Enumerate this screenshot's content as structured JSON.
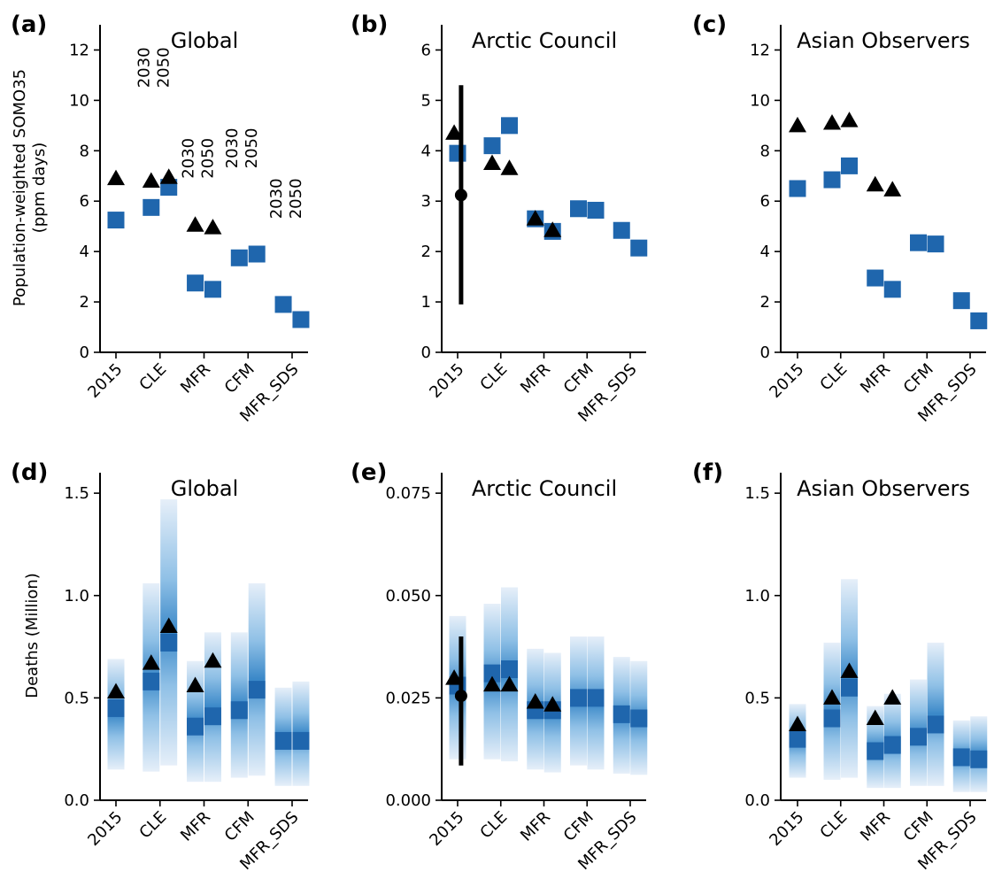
{
  "colors": {
    "square": "#1f66ad",
    "triangle": "#000000",
    "bar_core": "#1f66ad",
    "bar_light": "#dde9f6",
    "bar_mid": "#5a9fd6",
    "axis": "#000000"
  },
  "row_labels": {
    "top_ylabel_line1": "Population-weighted SOMO35",
    "top_ylabel_line2": "(ppm days)",
    "bottom_ylabel": "Deaths (Million)"
  },
  "chart_data": [
    {
      "id": "a",
      "letter": "(a)",
      "title": "Global",
      "type": "scatter",
      "categories": [
        "2015",
        "CLE",
        "MFR",
        "CFM",
        "MFR_SDS"
      ],
      "ylim": [
        0,
        13
      ],
      "yticks": [
        "0",
        "2",
        "4",
        "6",
        "8",
        "10",
        "12"
      ],
      "ytick_values": [
        0,
        2,
        4,
        6,
        8,
        10,
        12
      ],
      "ylabel": [
        "Population-weighted SOMO35",
        "(ppm days)"
      ],
      "year_labels": [
        {
          "category": 1,
          "y": 11.3,
          "texts": [
            "2030",
            "2050"
          ]
        },
        {
          "category": 2,
          "y": 7.7,
          "texts": [
            "2030",
            "2050"
          ]
        },
        {
          "category": 3,
          "y": 8.1,
          "texts": [
            "2030",
            "2050"
          ]
        },
        {
          "category": 4,
          "y": 6.1,
          "texts": [
            "2030",
            "2050"
          ]
        }
      ],
      "squares": [
        {
          "x": 0,
          "y": 5.25
        },
        {
          "x": 0.8,
          "y": 5.75
        },
        {
          "x": 1.2,
          "y": 6.55
        },
        {
          "x": 1.8,
          "y": 2.75
        },
        {
          "x": 2.2,
          "y": 2.5
        },
        {
          "x": 2.8,
          "y": 3.75
        },
        {
          "x": 3.2,
          "y": 3.9
        },
        {
          "x": 3.8,
          "y": 1.9
        },
        {
          "x": 4.2,
          "y": 1.3
        }
      ],
      "triangles": [
        {
          "x": 0,
          "y": 6.9
        },
        {
          "x": 0.8,
          "y": 6.8
        },
        {
          "x": 1.2,
          "y": 6.95
        },
        {
          "x": 1.8,
          "y": 5.05
        },
        {
          "x": 2.2,
          "y": 4.95
        }
      ]
    },
    {
      "id": "b",
      "letter": "(b)",
      "title": "Arctic Council",
      "type": "scatter",
      "categories": [
        "2015",
        "CLE",
        "MFR",
        "CFM",
        "MFR_SDS"
      ],
      "ylim": [
        0,
        6.5
      ],
      "yticks": [
        "0",
        "1",
        "2",
        "3",
        "4",
        "5",
        "6"
      ],
      "ytick_values": [
        0,
        1,
        2,
        3,
        4,
        5,
        6
      ],
      "squares": [
        {
          "x": 0,
          "y": 3.95
        },
        {
          "x": 0.8,
          "y": 4.1
        },
        {
          "x": 1.2,
          "y": 4.5
        },
        {
          "x": 1.8,
          "y": 2.65
        },
        {
          "x": 2.2,
          "y": 2.4
        },
        {
          "x": 2.8,
          "y": 2.85
        },
        {
          "x": 3.2,
          "y": 2.82
        },
        {
          "x": 3.8,
          "y": 2.42
        },
        {
          "x": 4.2,
          "y": 2.07
        }
      ],
      "triangles": [
        {
          "x": -0.08,
          "y": 4.35
        },
        {
          "x": 0.8,
          "y": 3.75
        },
        {
          "x": 1.2,
          "y": 3.65
        },
        {
          "x": 1.8,
          "y": 2.65
        },
        {
          "x": 2.2,
          "y": 2.42
        }
      ],
      "errorbar": {
        "x": 0.08,
        "y": 3.12,
        "low": 0.95,
        "high": 5.3
      }
    },
    {
      "id": "c",
      "letter": "(c)",
      "title": "Asian Observers",
      "type": "scatter",
      "categories": [
        "2015",
        "CLE",
        "MFR",
        "CFM",
        "MFR_SDS"
      ],
      "ylim": [
        0,
        13
      ],
      "yticks": [
        "0",
        "2",
        "4",
        "6",
        "8",
        "10",
        "12"
      ],
      "ytick_values": [
        0,
        2,
        4,
        6,
        8,
        10,
        12
      ],
      "squares": [
        {
          "x": 0,
          "y": 6.5
        },
        {
          "x": 0.8,
          "y": 6.85
        },
        {
          "x": 1.2,
          "y": 7.4
        },
        {
          "x": 1.8,
          "y": 2.95
        },
        {
          "x": 2.2,
          "y": 2.5
        },
        {
          "x": 2.8,
          "y": 4.35
        },
        {
          "x": 3.2,
          "y": 4.3
        },
        {
          "x": 3.8,
          "y": 2.05
        },
        {
          "x": 4.2,
          "y": 1.25
        }
      ],
      "triangles": [
        {
          "x": 0,
          "y": 9.0
        },
        {
          "x": 0.8,
          "y": 9.1
        },
        {
          "x": 1.2,
          "y": 9.2
        },
        {
          "x": 1.8,
          "y": 6.65
        },
        {
          "x": 2.2,
          "y": 6.45
        }
      ]
    },
    {
      "id": "d",
      "letter": "(d)",
      "title": "Global",
      "type": "bar",
      "categories": [
        "2015",
        "CLE",
        "MFR",
        "CFM",
        "MFR_SDS"
      ],
      "ylim": [
        0,
        1.6
      ],
      "yticks": [
        "0.0",
        "0.5",
        "1.0",
        "1.5"
      ],
      "ytick_values": [
        0,
        0.5,
        1.0,
        1.5
      ],
      "ylabel": [
        "Deaths (Million)"
      ],
      "bars": [
        {
          "x": 0,
          "low": 0.15,
          "high": 0.69,
          "median": 0.45
        },
        {
          "x": 0.8,
          "low": 0.14,
          "high": 1.06,
          "median": 0.58
        },
        {
          "x": 1.2,
          "low": 0.17,
          "high": 1.47,
          "median": 0.77
        },
        {
          "x": 1.8,
          "low": 0.09,
          "high": 0.68,
          "median": 0.36
        },
        {
          "x": 2.2,
          "low": 0.09,
          "high": 0.82,
          "median": 0.41
        },
        {
          "x": 2.8,
          "low": 0.11,
          "high": 0.82,
          "median": 0.44
        },
        {
          "x": 3.2,
          "low": 0.12,
          "high": 1.06,
          "median": 0.54
        },
        {
          "x": 3.8,
          "low": 0.07,
          "high": 0.55,
          "median": 0.29
        },
        {
          "x": 4.2,
          "low": 0.07,
          "high": 0.58,
          "median": 0.29
        }
      ],
      "triangles": [
        {
          "x": 0,
          "y": 0.53
        },
        {
          "x": 0.8,
          "y": 0.67
        },
        {
          "x": 1.2,
          "y": 0.85
        },
        {
          "x": 1.8,
          "y": 0.56
        },
        {
          "x": 2.2,
          "y": 0.68
        }
      ]
    },
    {
      "id": "e",
      "letter": "(e)",
      "title": "Arctic Council",
      "type": "bar",
      "categories": [
        "2015",
        "CLE",
        "MFR",
        "CFM",
        "MFR_SDS"
      ],
      "ylim": [
        0,
        0.08
      ],
      "yticks": [
        "0.000",
        "0.025",
        "0.050",
        "0.075"
      ],
      "ytick_values": [
        0,
        0.025,
        0.05,
        0.075
      ],
      "bars": [
        {
          "x": 0,
          "low": 0.01,
          "high": 0.045,
          "median": 0.028
        },
        {
          "x": 0.8,
          "low": 0.01,
          "high": 0.048,
          "median": 0.031
        },
        {
          "x": 1.2,
          "low": 0.0095,
          "high": 0.052,
          "median": 0.032
        },
        {
          "x": 1.8,
          "low": 0.0075,
          "high": 0.037,
          "median": 0.022
        },
        {
          "x": 2.2,
          "low": 0.0068,
          "high": 0.036,
          "median": 0.022
        },
        {
          "x": 2.8,
          "low": 0.0085,
          "high": 0.04,
          "median": 0.025
        },
        {
          "x": 3.2,
          "low": 0.0075,
          "high": 0.04,
          "median": 0.025
        },
        {
          "x": 3.8,
          "low": 0.0065,
          "high": 0.035,
          "median": 0.021
        },
        {
          "x": 4.2,
          "low": 0.0062,
          "high": 0.034,
          "median": 0.02
        }
      ],
      "triangles": [
        {
          "x": -0.08,
          "y": 0.0298
        },
        {
          "x": 0.8,
          "y": 0.0282
        },
        {
          "x": 1.2,
          "y": 0.0282
        },
        {
          "x": 1.8,
          "y": 0.024
        },
        {
          "x": 2.2,
          "y": 0.0233
        }
      ],
      "errorbar": {
        "x": 0.08,
        "y": 0.0255,
        "low": 0.0085,
        "high": 0.04
      }
    },
    {
      "id": "f",
      "letter": "(f)",
      "title": "Asian Observers",
      "type": "bar",
      "categories": [
        "2015",
        "CLE",
        "MFR",
        "CFM",
        "MFR_SDS"
      ],
      "ylim": [
        0,
        1.6
      ],
      "yticks": [
        "0.0",
        "0.5",
        "1.0",
        "1.5"
      ],
      "ytick_values": [
        0,
        0.5,
        1.0,
        1.5
      ],
      "bars": [
        {
          "x": 0,
          "low": 0.11,
          "high": 0.47,
          "median": 0.3
        },
        {
          "x": 0.8,
          "low": 0.1,
          "high": 0.77,
          "median": 0.4
        },
        {
          "x": 1.2,
          "low": 0.11,
          "high": 1.08,
          "median": 0.55
        },
        {
          "x": 1.8,
          "low": 0.06,
          "high": 0.46,
          "median": 0.24
        },
        {
          "x": 2.2,
          "low": 0.06,
          "high": 0.52,
          "median": 0.27
        },
        {
          "x": 2.8,
          "low": 0.07,
          "high": 0.59,
          "median": 0.31
        },
        {
          "x": 3.2,
          "low": 0.07,
          "high": 0.77,
          "median": 0.37
        },
        {
          "x": 3.8,
          "low": 0.04,
          "high": 0.39,
          "median": 0.21
        },
        {
          "x": 4.2,
          "low": 0.04,
          "high": 0.41,
          "median": 0.2
        }
      ],
      "triangles": [
        {
          "x": 0,
          "y": 0.37
        },
        {
          "x": 0.8,
          "y": 0.5
        },
        {
          "x": 1.2,
          "y": 0.63
        },
        {
          "x": 1.8,
          "y": 0.4
        },
        {
          "x": 2.2,
          "y": 0.5
        }
      ]
    }
  ]
}
